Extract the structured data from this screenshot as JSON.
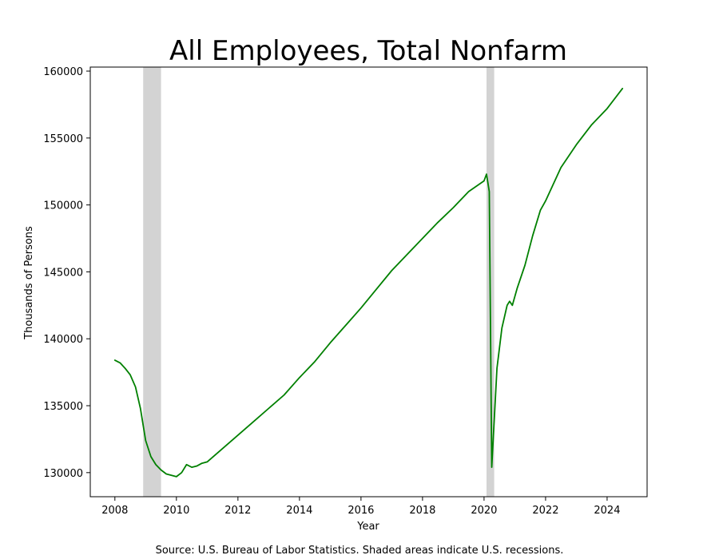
{
  "chart_data": {
    "type": "line",
    "title": "All Employees, Total Nonfarm",
    "xlabel": "Year",
    "ylabel": "Thousands of Persons",
    "source": "Source: U.S. Bureau of Labor Statistics. Shaded areas indicate U.S. recessions.",
    "xlim": [
      2007.2,
      2025.3
    ],
    "ylim": [
      128200,
      160300
    ],
    "x_ticks": [
      2008,
      2010,
      2012,
      2014,
      2016,
      2018,
      2020,
      2022,
      2024
    ],
    "y_ticks": [
      130000,
      135000,
      140000,
      145000,
      150000,
      155000,
      160000
    ],
    "grid": false,
    "legend": "none",
    "line_color": "#008000",
    "recession_color": "#d3d3d3",
    "recessions": [
      {
        "start": 2008.92,
        "end": 2009.5
      },
      {
        "start": 2020.08,
        "end": 2020.33
      }
    ],
    "series": [
      {
        "x": [
          2008.0,
          2008.17,
          2008.33,
          2008.5,
          2008.67,
          2008.83,
          2009.0,
          2009.17,
          2009.33,
          2009.5,
          2009.67,
          2009.83,
          2010.0,
          2010.17,
          2010.33,
          2010.5,
          2010.67,
          2010.83,
          2011.0,
          2011.5,
          2012.0,
          2012.5,
          2013.0,
          2013.5,
          2014.0,
          2014.5,
          2015.0,
          2015.5,
          2016.0,
          2016.5,
          2017.0,
          2017.5,
          2018.0,
          2018.5,
          2019.0,
          2019.5,
          2020.0,
          2020.08,
          2020.17,
          2020.25,
          2020.42,
          2020.58,
          2020.75,
          2020.83,
          2020.92,
          2021.08,
          2021.33,
          2021.58,
          2021.83,
          2022.0,
          2022.5,
          2023.0,
          2023.5,
          2024.0,
          2024.5
        ],
        "values": [
          138400,
          138200,
          137800,
          137300,
          136400,
          134800,
          132400,
          131200,
          130600,
          130200,
          129900,
          129800,
          129700,
          130000,
          130600,
          130400,
          130500,
          130700,
          130800,
          131800,
          132800,
          133800,
          134800,
          135800,
          137100,
          138300,
          139700,
          141000,
          142300,
          143700,
          145100,
          146300,
          147500,
          148700,
          149800,
          151000,
          151800,
          152300,
          151000,
          130400,
          137800,
          140800,
          142500,
          142800,
          142500,
          143800,
          145500,
          147700,
          149600,
          150300,
          152800,
          154500,
          156000,
          157200,
          158700
        ]
      }
    ]
  }
}
